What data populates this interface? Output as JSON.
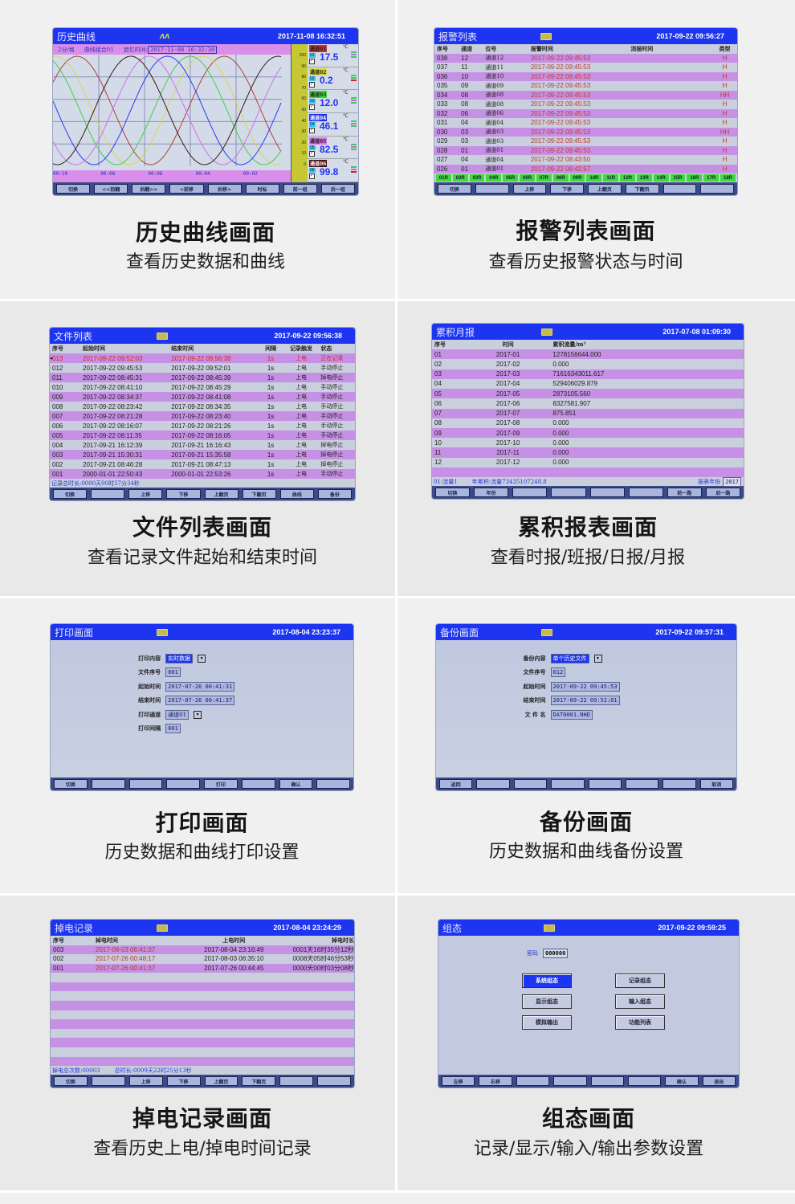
{
  "history": {
    "title": "历史曲线",
    "datetime": "2017-11-08 16:32:51",
    "scale": "2分/格",
    "group": "曲线组合01",
    "recall_label": "追忆时间:",
    "recall_time": "2017-11-08 16:32:30",
    "x_ticks": [
      "00:10",
      "00:08",
      "00:06",
      "00:04",
      "00:02"
    ],
    "y_ticks": [
      "100",
      "90",
      "80",
      "70",
      "60",
      "50",
      "40",
      "30",
      "20",
      "10",
      "0"
    ],
    "channels": [
      {
        "name": "通道01",
        "no": "01",
        "value": "17.5",
        "unit": "℃",
        "label_color": "#d0302a",
        "curve_color": "#b2402e"
      },
      {
        "name": "通道02",
        "no": "02",
        "value": "0.2",
        "unit": "℃",
        "label_color": "#d8d840",
        "curve_color": "#d8d84a"
      },
      {
        "name": "通道03",
        "no": "03",
        "value": "12.0",
        "unit": "℃",
        "label_color": "#30e030",
        "curve_color": "#40d040"
      },
      {
        "name": "通道04",
        "no": "04",
        "value": "46.1",
        "unit": "℃",
        "label_color": "#2030f0",
        "curve_color": "#2a3af0"
      },
      {
        "name": "通道05",
        "no": "05",
        "value": "82.5",
        "unit": "℃",
        "label_color": "#e070f0",
        "curve_color": "#d070e8"
      },
      {
        "name": "通道06",
        "no": "06",
        "value": "99.8",
        "unit": "℃",
        "label_color": "#4a1010",
        "curve_color": "#3a1818"
      }
    ],
    "buttons": [
      "切换",
      "<<前翻",
      "后翻>>",
      "<前移",
      "后移>",
      "时标",
      "前一组",
      "后一组"
    ],
    "caption": {
      "title": "历史曲线画面",
      "subtitle": "查看历史数据和曲线"
    }
  },
  "alarm": {
    "title": "报警列表",
    "datetime": "2017-09-22 09:56:27",
    "headers": [
      "序号",
      "通道",
      "位号",
      "报警时间",
      "消报时间",
      "类型"
    ],
    "rows": [
      [
        "038",
        "12",
        "通道12",
        "2017-09-22 09:45:53",
        "",
        "H"
      ],
      [
        "037",
        "11",
        "通道11",
        "2017-09-22 09:45:53",
        "",
        "H"
      ],
      [
        "036",
        "10",
        "通道10",
        "2017-09-22 09:45:53",
        "",
        "H"
      ],
      [
        "035",
        "09",
        "通道09",
        "2017-09-22 09:45:53",
        "",
        "H"
      ],
      [
        "034",
        "08",
        "通道08",
        "2017-09-22 09:45:53",
        "",
        "HH"
      ],
      [
        "033",
        "08",
        "通道08",
        "2017-09-22 09:45:53",
        "",
        "H"
      ],
      [
        "032",
        "06",
        "通道06",
        "2017-09-22 09:45:53",
        "",
        "H"
      ],
      [
        "031",
        "04",
        "通道04",
        "2017-09-22 09:45:53",
        "",
        "H"
      ],
      [
        "030",
        "03",
        "通道03",
        "2017-09-22 09:45:53",
        "",
        "HH"
      ],
      [
        "029",
        "03",
        "通道03",
        "2017-09-22 09:45:53",
        "",
        "H"
      ],
      [
        "028",
        "01",
        "通道01",
        "2017-09-22 09:45:53",
        "",
        "H"
      ],
      [
        "027",
        "04",
        "通道04",
        "2017-09-22 08:43:50",
        "",
        "H"
      ],
      [
        "026",
        "01",
        "通道01",
        "2017-09-22 08:42:57",
        "",
        "H"
      ]
    ],
    "relays": [
      "01R",
      "02R",
      "03R",
      "04R",
      "05R",
      "06R",
      "07R",
      "08R",
      "09R",
      "10R",
      "11R",
      "12R",
      "13R",
      "14R",
      "15R",
      "16R",
      "17R",
      "18R"
    ],
    "buttons": [
      "切换",
      "",
      "上移",
      "下移",
      "上翻页",
      "下翻页",
      "",
      ""
    ],
    "caption": {
      "title": "报警列表画面",
      "subtitle": "查看历史报警状态与时间"
    }
  },
  "files": {
    "title": "文件列表",
    "datetime": "2017-09-22 09:56:38",
    "headers": [
      "序号",
      "起始时间",
      "结束时间",
      "间隔",
      "记录触发",
      "状态"
    ],
    "rows": [
      [
        "013",
        "2017-09-22 09:52:03",
        "2017-09-22 09:56:38",
        "1s",
        "上电",
        "正在记录"
      ],
      [
        "012",
        "2017-09-22 09:45:53",
        "2017-09-22 09:52:01",
        "1s",
        "上电",
        "手动停止"
      ],
      [
        "011",
        "2017-09-22 08:45:31",
        "2017-09-22 08:45:39",
        "1s",
        "上电",
        "掉电停止"
      ],
      [
        "010",
        "2017-09-22 08:41:10",
        "2017-09-22 08:45:29",
        "1s",
        "上电",
        "手动停止"
      ],
      [
        "009",
        "2017-09-22 08:34:37",
        "2017-09-22 08:41:08",
        "1s",
        "上电",
        "手动停止"
      ],
      [
        "008",
        "2017-09-22 08:23:42",
        "2017-09-22 08:34:35",
        "1s",
        "上电",
        "手动停止"
      ],
      [
        "007",
        "2017-09-22 08:21:28",
        "2017-09-22 08:23:40",
        "1s",
        "上电",
        "手动停止"
      ],
      [
        "006",
        "2017-09-22 08:16:07",
        "2017-09-22 08:21:26",
        "1s",
        "上电",
        "手动停止"
      ],
      [
        "005",
        "2017-09-22 08:11:35",
        "2017-09-22 08:16:05",
        "1s",
        "上电",
        "手动停止"
      ],
      [
        "004",
        "2017-09-21 16:12:39",
        "2017-09-21 16:16:43",
        "1s",
        "上电",
        "掉电停止"
      ],
      [
        "003",
        "2017-09-21 15:30:31",
        "2017-09-21 15:35:58",
        "1s",
        "上电",
        "掉电停止"
      ],
      [
        "002",
        "2017-09-21 08:46:28",
        "2017-09-21 08:47:13",
        "1s",
        "上电",
        "掉电停止"
      ],
      [
        "001",
        "2000-01-01 22:50:43",
        "2000-01-01 22:53:26",
        "1s",
        "上电",
        "手动停止"
      ]
    ],
    "footer": [
      "记录总时长:0000天00时57分34秒"
    ],
    "buttons": [
      "切换",
      "",
      "上移",
      "下移",
      "上翻页",
      "下翻页",
      "曲线",
      "备份"
    ],
    "caption": {
      "title": "文件列表画面",
      "subtitle": "查看记录文件起始和结束时间"
    }
  },
  "monthly": {
    "title": "累积月报",
    "datetime": "2017-07-08 01:09:30",
    "headers": [
      "序号",
      "时间",
      "累积流量/m³"
    ],
    "rows": [
      [
        "01",
        "2017-01",
        "1278156644.000"
      ],
      [
        "02",
        "2017-02",
        "0.000"
      ],
      [
        "03",
        "2017-03",
        "71616343011.617"
      ],
      [
        "04",
        "2017-04",
        "529406029.879"
      ],
      [
        "05",
        "2017-05",
        "2873105.560"
      ],
      [
        "06",
        "2017-06",
        "8327581.907"
      ],
      [
        "07",
        "2017-07",
        "875.851"
      ],
      [
        "08",
        "2017-08",
        "0.000"
      ],
      [
        "09",
        "2017-09",
        "0.000"
      ],
      [
        "10",
        "2017-10",
        "0.000"
      ],
      [
        "11",
        "2017-11",
        "0.000"
      ],
      [
        "12",
        "2017-12",
        "0.000"
      ]
    ],
    "footer": [
      "01:流量1",
      "年累积:流量73435107248.8"
    ],
    "year_label": "报表年份",
    "year": "2017",
    "buttons": [
      "切换",
      "年份",
      "",
      "",
      "",
      "",
      "前一路",
      "后一路"
    ],
    "caption": {
      "title": "累积报表画面",
      "subtitle": "查看时报/班报/日报/月报"
    }
  },
  "print": {
    "title": "打印画面",
    "datetime": "2017-08-04 23:23:37",
    "fields": [
      {
        "label": "打印内容",
        "value": "实时数据",
        "dropdown": true,
        "selected": true
      },
      {
        "label": "文件序号",
        "value": "001"
      },
      {
        "label": "起始时间",
        "value": "2017-07-26 00:41:31"
      },
      {
        "label": "结束时间",
        "value": "2017-07-26 00:41:37"
      },
      {
        "label": "打印通道",
        "value": "通道01",
        "dropdown": true
      },
      {
        "label": "打印间隔",
        "value": "001"
      }
    ],
    "buttons": [
      "切换",
      "",
      "",
      "",
      "打印",
      "",
      "确认",
      ""
    ],
    "caption": {
      "title": "打印画面",
      "subtitle": "历史数据和曲线打印设置"
    }
  },
  "backup": {
    "title": "备份画面",
    "datetime": "2017-09-22 09:57:31",
    "fields": [
      {
        "label": "备份内容",
        "value": "单个历史文件",
        "dropdown": true,
        "selected": true
      },
      {
        "label": "文件序号",
        "value": "012"
      },
      {
        "label": "起始时间",
        "value": "2017-09-22 09:45:53"
      },
      {
        "label": "结束时间",
        "value": "2017-09-22 09:52:01"
      },
      {
        "label": "文 件 名",
        "value": "DAT0001.NHD"
      }
    ],
    "buttons": [
      "返回",
      "",
      "",
      "",
      "",
      "",
      "",
      "取消"
    ],
    "caption": {
      "title": "备份画面",
      "subtitle": "历史数据和曲线备份设置"
    }
  },
  "power": {
    "title": "掉电记录",
    "datetime": "2017-08-04 23:24:29",
    "headers": [
      "序号",
      "掉电时间",
      "上电时间",
      "掉电时长"
    ],
    "rows": [
      [
        "003",
        "2017-08-03 06:41:37",
        "2017-08-04 23:16:49",
        "0001天16时35分12秒"
      ],
      [
        "002",
        "2017-07-26 00:48:17",
        "2017-08-03 06:35:10",
        "0008天05时46分53秒"
      ],
      [
        "001",
        "2017-07-26 00:41:37",
        "2017-07-26 00:44:45",
        "0000天00时03分08秒"
      ]
    ],
    "footer": [
      "掉电总次数:00003",
      "总时长:0009天22时25分13秒"
    ],
    "buttons": [
      "切换",
      "",
      "上移",
      "下移",
      "上翻页",
      "下翻页",
      "",
      ""
    ],
    "caption": {
      "title": "掉电记录画面",
      "subtitle": "查看历史上电/掉电时间记录"
    }
  },
  "config": {
    "title": "组态",
    "datetime": "2017-09-22 09:59:25",
    "password_label": "密码",
    "password": "000000",
    "menu": [
      "系统组态",
      "记录组态",
      "显示组态",
      "输入组态",
      "模拟输出",
      "功能列表"
    ],
    "selected_menu": "系统组态",
    "buttons": [
      "左移",
      "右移",
      "",
      "",
      "",
      "",
      "确认",
      "退出"
    ],
    "caption": {
      "title": "组态画面",
      "subtitle": "记录/显示/输入/输出参数设置"
    }
  }
}
